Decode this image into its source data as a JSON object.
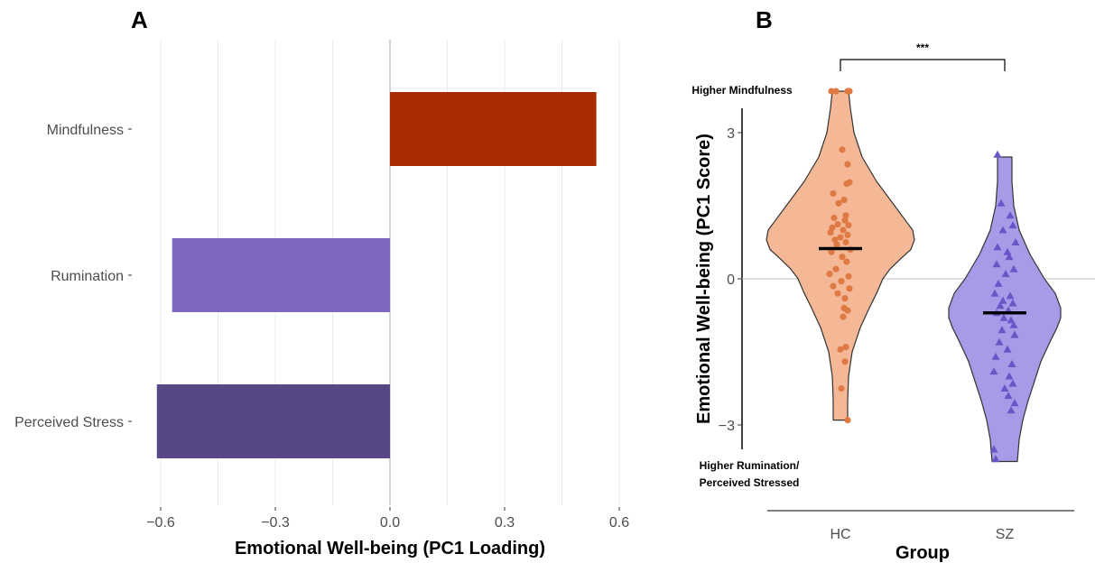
{
  "panels": {
    "a_label": "A",
    "b_label": "B"
  },
  "chart_data": [
    {
      "type": "bar",
      "orientation": "horizontal",
      "categories": [
        "Mindfulness",
        "Rumination",
        "Perceived Stress"
      ],
      "values": [
        0.54,
        -0.57,
        -0.61
      ],
      "colors": [
        "#a82c00",
        "#7d67c1",
        "#574785"
      ],
      "xlabel": "Emotional Well-being (PC1 Loading)",
      "xlim": [
        -0.6,
        0.6
      ],
      "xticks": [
        "−0.6",
        "−0.3",
        "0.0",
        "0.3",
        "0.6"
      ],
      "grid": "vertical"
    },
    {
      "type": "violin",
      "xlabel": "Group",
      "ylabel": "Emotional Well-being (PC1 Score)",
      "yticks": [
        "3",
        "0",
        "−3"
      ],
      "groups": [
        {
          "name": "HC",
          "color": "#f4b896",
          "point_color": "#e07a45",
          "marker": "circle",
          "mean": 0.62,
          "range": [
            -2.9,
            3.85
          ],
          "points": [
            3.85,
            3.85,
            3.85,
            3.85,
            2.65,
            2.35,
            1.98,
            1.95,
            1.75,
            1.62,
            1.55,
            1.3,
            1.25,
            1.2,
            1.12,
            1.1,
            1.05,
            1.0,
            0.95,
            0.9,
            0.85,
            0.8,
            0.75,
            0.7,
            0.6,
            0.55,
            0.45,
            0.35,
            0.2,
            0.1,
            0.05,
            -0.05,
            -0.15,
            -0.2,
            -0.3,
            -0.4,
            -0.6,
            -0.65,
            -0.78,
            -1.4,
            -1.45,
            -1.7,
            -2.25,
            -2.9
          ]
        },
        {
          "name": "SZ",
          "color": "#a89ae6",
          "point_color": "#6a55c8",
          "marker": "triangle",
          "mean": -0.7,
          "range": [
            -3.75,
            2.5
          ],
          "points": [
            2.55,
            1.55,
            1.3,
            1.1,
            1.0,
            0.75,
            0.65,
            0.55,
            0.45,
            0.3,
            0.2,
            0.1,
            -0.1,
            -0.3,
            -0.35,
            -0.45,
            -0.5,
            -0.55,
            -0.65,
            -0.7,
            -0.8,
            -0.85,
            -0.95,
            -1.05,
            -1.15,
            -1.3,
            -1.45,
            -1.6,
            -1.75,
            -1.9,
            -2.0,
            -2.15,
            -2.25,
            -2.4,
            -2.55,
            -2.7,
            -3.5,
            -3.7
          ]
        }
      ],
      "annotations": {
        "top": "Higher Mindfulness",
        "bottom_line1": "Higher Rumination/",
        "bottom_line2": "Perceived Stressed"
      },
      "significance": "***"
    }
  ]
}
